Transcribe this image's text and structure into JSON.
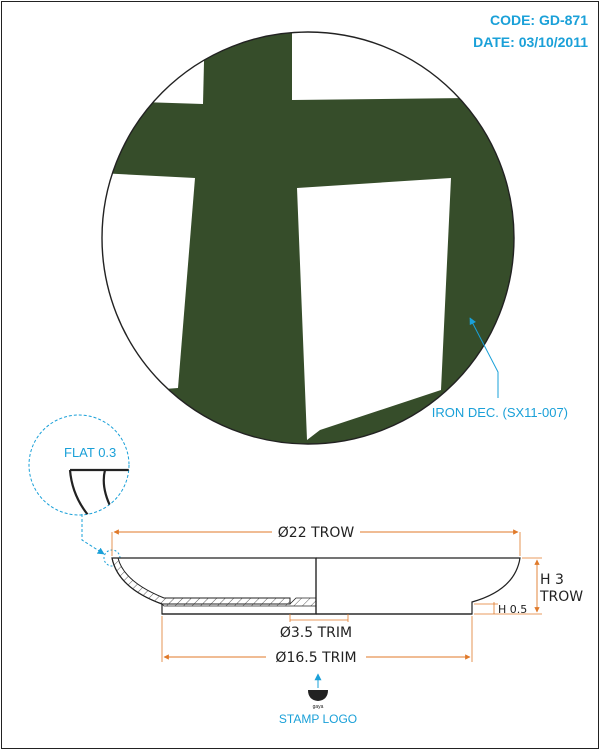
{
  "header": {
    "code": "CODE: GD-871",
    "date": "DATE: 03/10/2011"
  },
  "labels": {
    "decoration": "IRON DEC. (SX11-007)",
    "flat": "FLAT 0.3",
    "stamp_logo": "STAMP LOGO",
    "stamp_brand": "gaya"
  },
  "dimensions": {
    "outer_diameter": "Ø22 TROW",
    "height_line1": "H 3",
    "height_line2": "TROW",
    "foot_height": "H 0.5",
    "inner_trim": "Ø3.5 TRIM",
    "foot_diameter": "Ø16.5 TRIM"
  },
  "colors": {
    "decoration_green": "#364d2a",
    "annotation_blue": "#1aa0d8",
    "dimension_orange": "#e07a2a",
    "line_black": "#222222"
  }
}
